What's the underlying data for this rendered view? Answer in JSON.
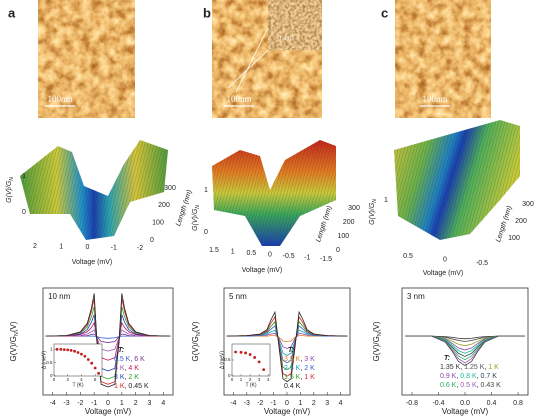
{
  "panels": [
    {
      "label": "a",
      "scale_bar": "100nm",
      "surface": {
        "zlabel": [
          "G(V)/G",
          "N"
        ],
        "xlabel": "Voltage (mV)",
        "ylabel": "Length (nm)",
        "zticks": [
          0,
          1
        ],
        "xticks": [
          2,
          1,
          0,
          -1,
          -2
        ],
        "yticks": [
          0,
          100,
          200,
          300
        ]
      }
    },
    {
      "label": "b",
      "scale_bar": "100nm",
      "inset_scale": "1 nm",
      "surface": {
        "zlabel": [
          "G(V)/G",
          "N"
        ],
        "xlabel": "Voltage (mV)",
        "ylabel": "Length (nm)",
        "zticks": [
          0,
          1
        ],
        "xticks": [
          1.5,
          1,
          0.5,
          0,
          -0.5,
          -1,
          -1.5
        ],
        "yticks": [
          0,
          100,
          200,
          300
        ]
      }
    },
    {
      "label": "c",
      "scale_bar": "100nm",
      "surface": {
        "zlabel": [
          "G(V)/G",
          "N"
        ],
        "xlabel": "Voltage (mV)",
        "ylabel": "Length (nm)",
        "zticks": [
          1
        ],
        "xticks": [
          0.5,
          0,
          -0.5
        ],
        "yticks": [
          100,
          200,
          300
        ]
      }
    }
  ],
  "chart_data": [
    {
      "type": "line",
      "annotation": "10 nm",
      "xlabel": "Voltage (mV)",
      "ylabel": [
        "G(V)/G",
        "N",
        "(V)"
      ],
      "legend_title": "T:",
      "legend_separator": ",",
      "x": [
        -4.5,
        -3,
        -2,
        -1.5,
        -1.2,
        -1,
        -0.8,
        -0.5,
        0,
        0.5,
        0.8,
        1,
        1.2,
        1.5,
        2,
        3,
        4.5
      ],
      "xlim": [
        -4.7,
        4.7
      ],
      "xticks": [
        -4,
        -3,
        -2,
        -1,
        0,
        1,
        2,
        3,
        4
      ],
      "ylim": [
        -0.1,
        1.9
      ],
      "series": [
        {
          "name": "6.5 K",
          "color": "#3a5fcd",
          "values": [
            1,
            1,
            1,
            1,
            1,
            1,
            0.99,
            0.97,
            0.96,
            0.97,
            0.99,
            1,
            1,
            1,
            1,
            1,
            1
          ]
        },
        {
          "name": "6 K",
          "color": "#7b3294",
          "values": [
            1,
            1,
            1,
            1.01,
            1.03,
            1.04,
            0.99,
            0.9,
            0.88,
            0.9,
            0.99,
            1.04,
            1.03,
            1.01,
            1,
            1,
            1
          ]
        },
        {
          "name": "5 K",
          "color": "#9b59b6",
          "values": [
            1,
            1,
            1.01,
            1.04,
            1.08,
            1.12,
            0.97,
            0.76,
            0.72,
            0.76,
            0.97,
            1.12,
            1.08,
            1.04,
            1.01,
            1,
            1
          ]
        },
        {
          "name": "4 K",
          "color": "#c2185b",
          "values": [
            1,
            1,
            1.03,
            1.08,
            1.16,
            1.25,
            0.95,
            0.6,
            0.55,
            0.6,
            0.95,
            1.25,
            1.16,
            1.08,
            1.03,
            1,
            1
          ]
        },
        {
          "name": "3 K",
          "color": "#1f3fbf",
          "values": [
            1,
            1.01,
            1.04,
            1.12,
            1.26,
            1.4,
            0.9,
            0.4,
            0.35,
            0.4,
            0.9,
            1.4,
            1.26,
            1.12,
            1.04,
            1.01,
            1
          ]
        },
        {
          "name": "2 K",
          "color": "#2ca02c",
          "values": [
            1,
            1.01,
            1.06,
            1.17,
            1.36,
            1.55,
            0.9,
            0.25,
            0.2,
            0.25,
            0.9,
            1.55,
            1.36,
            1.17,
            1.06,
            1.01,
            1
          ]
        },
        {
          "name": "1 K",
          "color": "#d62728",
          "values": [
            1,
            1.01,
            1.07,
            1.21,
            1.46,
            1.7,
            0.9,
            0.15,
            0.1,
            0.15,
            0.9,
            1.7,
            1.46,
            1.21,
            1.07,
            1.01,
            1
          ]
        },
        {
          "name": "0.45 K",
          "color": "#222222",
          "values": [
            1,
            1.01,
            1.08,
            1.24,
            1.52,
            1.8,
            0.9,
            0.1,
            0.05,
            0.1,
            0.9,
            1.8,
            1.52,
            1.24,
            1.08,
            1.01,
            1
          ]
        }
      ]
    },
    {
      "type": "line",
      "annotation": "5 nm",
      "xlabel": "Voltage (mV)",
      "ylabel": [
        "G(V)/G",
        "N",
        "(V)"
      ],
      "legend_title": "T:",
      "legend_separator": ",",
      "x": [
        -4.5,
        -3,
        -2,
        -1.5,
        -1.2,
        -0.9,
        -0.6,
        -0.3,
        0,
        0.3,
        0.6,
        0.9,
        1.2,
        1.5,
        2,
        3,
        4.5
      ],
      "xlim": [
        -4.7,
        4.7
      ],
      "xticks": [
        -4,
        -3,
        -2,
        -1,
        0,
        1,
        2,
        3,
        4
      ],
      "ylim": [
        -0.1,
        1.9
      ],
      "series": [
        {
          "name": "3.5 K",
          "color": "#e67e22",
          "values": [
            1,
            1,
            1,
            1,
            1.01,
            1.01,
            0.98,
            0.91,
            0.9,
            0.91,
            0.98,
            1.01,
            1.01,
            1,
            1,
            1,
            1
          ]
        },
        {
          "name": "3 K",
          "color": "#8e44ad",
          "values": [
            1,
            1,
            1.01,
            1.02,
            1.04,
            1.05,
            0.96,
            0.8,
            0.77,
            0.8,
            0.96,
            1.05,
            1.04,
            1.02,
            1.01,
            1,
            1
          ]
        },
        {
          "name": "2.5 K",
          "color": "#17a2b8",
          "values": [
            1,
            1,
            1.01,
            1.04,
            1.08,
            1.11,
            0.93,
            0.68,
            0.64,
            0.68,
            0.93,
            1.11,
            1.08,
            1.04,
            1.01,
            1,
            1
          ]
        },
        {
          "name": "2 K",
          "color": "#3a5fcd",
          "values": [
            1,
            1,
            1.02,
            1.06,
            1.13,
            1.19,
            0.9,
            0.55,
            0.5,
            0.55,
            0.9,
            1.19,
            1.13,
            1.06,
            1.02,
            1,
            1
          ]
        },
        {
          "name": "1.5 K",
          "color": "#2ca02c",
          "values": [
            1,
            1.01,
            1.03,
            1.08,
            1.18,
            1.27,
            0.88,
            0.42,
            0.38,
            0.42,
            0.88,
            1.27,
            1.18,
            1.08,
            1.03,
            1.01,
            1
          ]
        },
        {
          "name": "1 K",
          "color": "#d62728",
          "values": [
            1,
            1.01,
            1.03,
            1.1,
            1.24,
            1.36,
            0.85,
            0.3,
            0.25,
            0.3,
            0.85,
            1.36,
            1.24,
            1.1,
            1.03,
            1.01,
            1
          ]
        },
        {
          "name": "0.4 K",
          "color": "#222222",
          "values": [
            1,
            1.01,
            1.04,
            1.12,
            1.3,
            1.45,
            0.8,
            0.2,
            0.15,
            0.2,
            0.8,
            1.45,
            1.3,
            1.12,
            1.04,
            1.01,
            1
          ]
        }
      ]
    },
    {
      "type": "line",
      "annotation": "3 nm",
      "xlabel": "Voltage (mV)",
      "ylabel": [
        "G(V)/G",
        "N",
        "(V)"
      ],
      "legend_title": "T:",
      "legend_separator": ",",
      "x": [
        -0.9,
        -0.5,
        -0.3,
        -0.2,
        -0.1,
        0,
        0.1,
        0.2,
        0.3,
        0.5,
        0.9
      ],
      "xlim": [
        -0.95,
        0.95
      ],
      "xticks": [
        -0.8,
        -0.4,
        {
          "value": 0,
          "label": "0.0"
        },
        0.4,
        0.8
      ],
      "ylim": [
        -0.1,
        1.9
      ],
      "series": [
        {
          "name": "1.35 K",
          "color": "#333333",
          "values": [
            1,
            1,
            0.99,
            0.98,
            0.96,
            0.95,
            0.96,
            0.98,
            0.99,
            1,
            1
          ]
        },
        {
          "name": "1.25 K",
          "color": "#555555",
          "values": [
            1,
            1,
            0.98,
            0.95,
            0.92,
            0.9,
            0.92,
            0.95,
            0.98,
            1,
            1
          ]
        },
        {
          "name": "1 K",
          "color": "#9a9a1a",
          "values": [
            1,
            1,
            0.96,
            0.91,
            0.85,
            0.82,
            0.85,
            0.91,
            0.96,
            1,
            1
          ]
        },
        {
          "name": "0.9 K",
          "color": "#8e44ad",
          "values": [
            1,
            1,
            0.95,
            0.87,
            0.78,
            0.74,
            0.78,
            0.87,
            0.95,
            1,
            1
          ]
        },
        {
          "name": "0.8 K",
          "color": "#1abc9c",
          "values": [
            1,
            1,
            0.94,
            0.84,
            0.73,
            0.68,
            0.73,
            0.84,
            0.94,
            1,
            1
          ]
        },
        {
          "name": "0.7 K",
          "color": "#2c3e50",
          "values": [
            1,
            1,
            0.92,
            0.81,
            0.68,
            0.62,
            0.68,
            0.81,
            0.92,
            1,
            1
          ]
        },
        {
          "name": "0.6 K",
          "color": "#27ae60",
          "values": [
            1,
            1,
            0.91,
            0.78,
            0.63,
            0.56,
            0.63,
            0.78,
            0.91,
            1,
            1
          ]
        },
        {
          "name": "0.5 K",
          "color": "#9b59b6",
          "values": [
            1,
            1,
            0.9,
            0.75,
            0.58,
            0.5,
            0.58,
            0.75,
            0.9,
            1,
            1
          ]
        },
        {
          "name": "0.43 K",
          "color": "#444444",
          "values": [
            1,
            1,
            0.89,
            0.73,
            0.53,
            0.45,
            0.53,
            0.73,
            0.89,
            1,
            1
          ]
        }
      ]
    },
    {
      "type": "scatter",
      "xlabel": "T (K)",
      "ylabel": "Δ (meV)",
      "color": "#c0201e",
      "x": [
        0.45,
        1,
        1.5,
        2,
        2.5,
        3,
        3.5,
        4,
        4.5,
        5,
        5.5,
        6,
        6.5
      ],
      "values": [
        1,
        1,
        0.99,
        0.98,
        0.96,
        0.93,
        0.88,
        0.82,
        0.74,
        0.62,
        0.48,
        0.3,
        0.1
      ],
      "xlim": [
        0,
        7
      ],
      "xticks": [
        0,
        2,
        4,
        6
      ],
      "ylim": [
        0,
        1.2
      ],
      "yticks": [
        0,
        0.5,
        1
      ]
    },
    {
      "type": "scatter",
      "xlabel": "T (K)",
      "ylabel": "Δ (meV)",
      "color": "#c0201e",
      "x": [
        0.4,
        1,
        1.5,
        2,
        2.5,
        3,
        3.5
      ],
      "values": [
        0.75,
        0.74,
        0.72,
        0.67,
        0.58,
        0.44,
        0.2
      ],
      "xlim": [
        0,
        4.2
      ],
      "xticks": [
        0,
        1,
        2,
        3,
        4
      ],
      "ylim": [
        0,
        1
      ],
      "yticks": [
        0,
        0.5
      ]
    }
  ]
}
